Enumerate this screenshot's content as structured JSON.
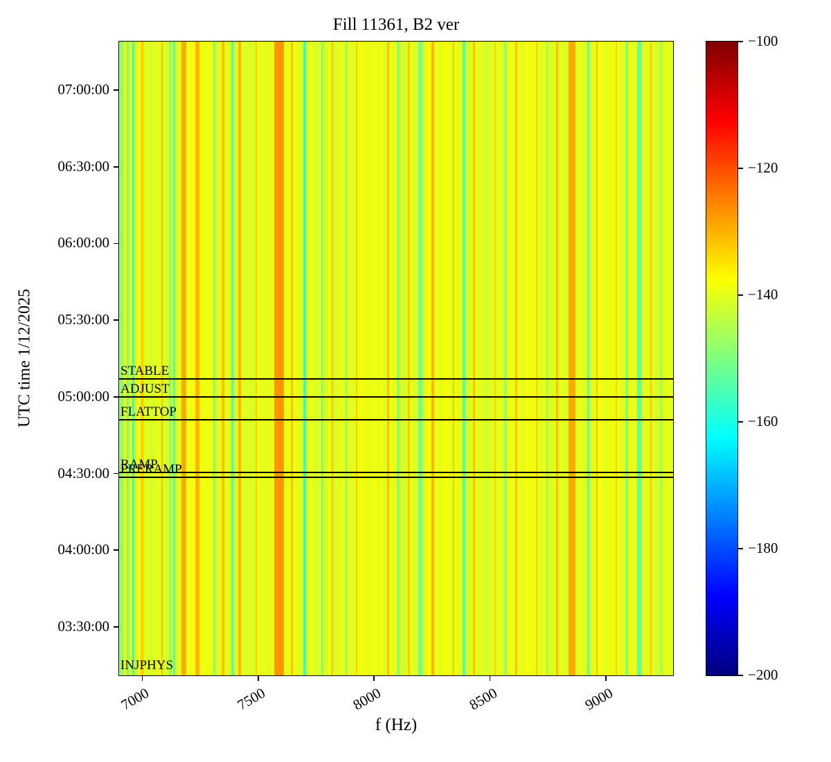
{
  "chart_data": {
    "type": "heatmap",
    "title": "Fill 11361, B2 ver",
    "xlabel": "f (Hz)",
    "ylabel": "UTC time 1/12/2025",
    "colormap": "jet",
    "x_range_hz": [
      6900,
      9290
    ],
    "x_ticks": [
      {
        "value": 7000,
        "label": "7000"
      },
      {
        "value": 7500,
        "label": "7500"
      },
      {
        "value": 8000,
        "label": "8000"
      },
      {
        "value": 8500,
        "label": "8500"
      },
      {
        "value": 9000,
        "label": "9000"
      }
    ],
    "y_range_utc": [
      "03:11:00",
      "07:19:00"
    ],
    "y_ticks": [
      "07:00:00",
      "06:30:00",
      "06:00:00",
      "05:30:00",
      "05:00:00",
      "04:30:00",
      "04:00:00",
      "03:30:00"
    ],
    "color_scale": {
      "min": -200,
      "max": -100,
      "tick_values": [
        -100,
        -120,
        -140,
        -160,
        -180,
        -200
      ],
      "tick_labels": [
        "−100",
        "−120",
        "−140",
        "−160",
        "−180",
        "−200"
      ]
    },
    "background_value_db": -140,
    "noise_amplitude_db": 1.2,
    "phases": [
      {
        "label": "STABLE",
        "time": "05:07:00",
        "has_line": true
      },
      {
        "label": "ADJUST",
        "time": "05:00:00",
        "has_line": true
      },
      {
        "label": "FLATTOP",
        "time": "04:51:00",
        "has_line": true
      },
      {
        "label": "RAMP",
        "time": "04:30:30",
        "has_line": true
      },
      {
        "label": "PRERAMP",
        "time": "04:28:30",
        "has_line": true
      },
      {
        "label": "INJPHYS",
        "time": "03:11:45",
        "has_line": false
      }
    ],
    "stripes_f_width_db": [
      [
        6910,
        14,
        -150
      ],
      [
        6938,
        10,
        -152
      ],
      [
        6962,
        8,
        -158
      ],
      [
        7000,
        14,
        -133
      ],
      [
        7085,
        8,
        -131
      ],
      [
        7120,
        8,
        -150
      ],
      [
        7138,
        10,
        -156
      ],
      [
        7180,
        22,
        -129
      ],
      [
        7238,
        18,
        -130
      ],
      [
        7310,
        7,
        -154
      ],
      [
        7348,
        10,
        -131
      ],
      [
        7388,
        9,
        -157
      ],
      [
        7420,
        12,
        -130
      ],
      [
        7492,
        8,
        -132
      ],
      [
        7590,
        42,
        -127
      ],
      [
        7645,
        10,
        -131
      ],
      [
        7700,
        12,
        -158
      ],
      [
        7775,
        8,
        -154
      ],
      [
        7820,
        8,
        -131
      ],
      [
        7880,
        7,
        -152
      ],
      [
        7925,
        8,
        -132
      ],
      [
        8060,
        9,
        -131
      ],
      [
        8104,
        8,
        -155
      ],
      [
        8150,
        8,
        -132
      ],
      [
        8200,
        20,
        -152
      ],
      [
        8253,
        10,
        -130
      ],
      [
        8343,
        7,
        -132
      ],
      [
        8388,
        10,
        -156
      ],
      [
        8432,
        9,
        -131
      ],
      [
        8522,
        7,
        -133
      ],
      [
        8567,
        8,
        -153
      ],
      [
        8612,
        9,
        -131
      ],
      [
        8701,
        8,
        -132
      ],
      [
        8746,
        7,
        -151
      ],
      [
        8791,
        9,
        -131
      ],
      [
        8855,
        30,
        -129
      ],
      [
        8925,
        9,
        -155
      ],
      [
        8961,
        8,
        -131
      ],
      [
        9045,
        7,
        -132
      ],
      [
        9090,
        8,
        -157
      ],
      [
        9145,
        18,
        -154
      ],
      [
        9194,
        8,
        -131
      ],
      [
        9239,
        8,
        -151
      ]
    ]
  }
}
